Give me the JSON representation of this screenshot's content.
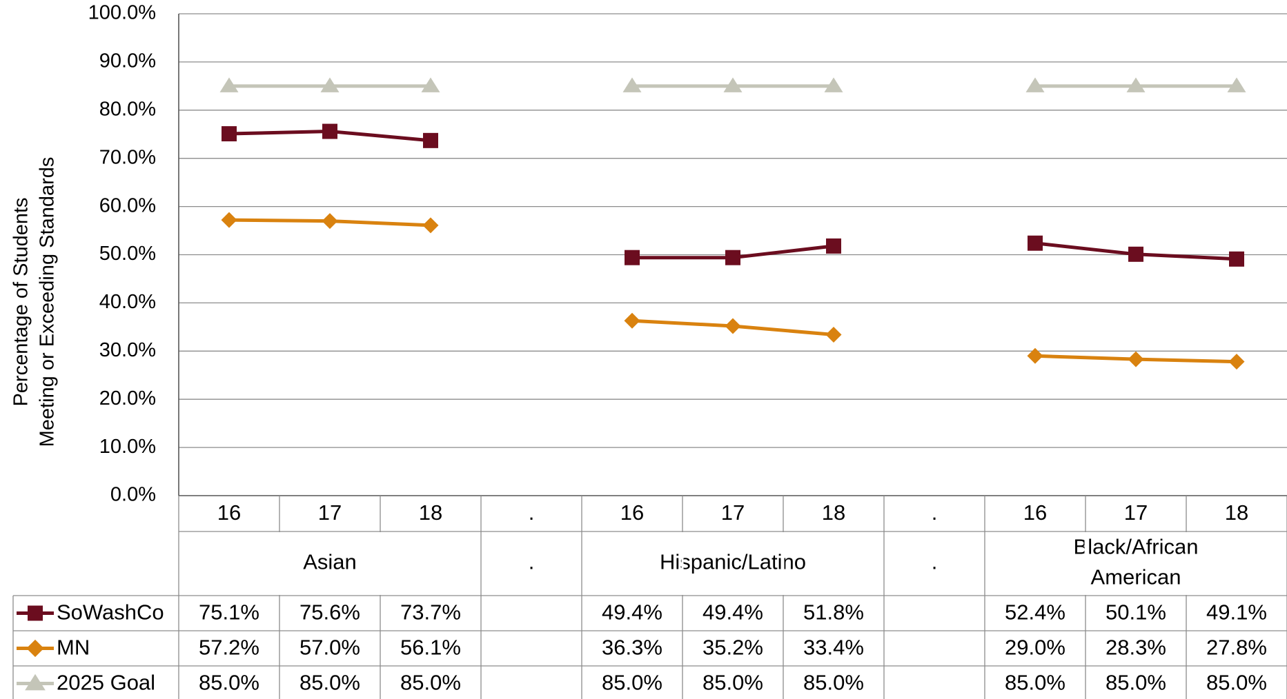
{
  "chart_data": {
    "type": "line",
    "ylabel": [
      "Percentage of Students",
      "Meeting or Exceeding Standards"
    ],
    "ylim": [
      0,
      100
    ],
    "ytick_step": 10,
    "ytick_labels": [
      "0.0%",
      "10.0%",
      "20.0%",
      "30.0%",
      "40.0%",
      "50.0%",
      "60.0%",
      "70.0%",
      "80.0%",
      "90.0%",
      "100.0%"
    ],
    "grid": true,
    "legend": "data-table",
    "categories": [
      "16",
      "17",
      "18",
      ".",
      "16",
      "17",
      "18",
      ".",
      "16",
      "17",
      "18"
    ],
    "groups": [
      {
        "label": [
          "Asian"
        ],
        "span": [
          0,
          2
        ]
      },
      {
        "label": [
          "."
        ],
        "span": [
          3,
          3
        ]
      },
      {
        "label": [
          "Hispanic/Latino"
        ],
        "span": [
          4,
          6
        ]
      },
      {
        "label": [
          "."
        ],
        "span": [
          7,
          7
        ]
      },
      {
        "label": [
          "Black/African",
          "American"
        ],
        "span": [
          8,
          10
        ]
      }
    ],
    "series": [
      {
        "name": "SoWashCo",
        "color": "#6b0d1f",
        "marker": "square",
        "values": [
          75.1,
          75.6,
          73.7,
          null,
          49.4,
          49.4,
          51.8,
          null,
          52.4,
          50.1,
          49.1
        ],
        "labels": [
          "75.1%",
          "75.6%",
          "73.7%",
          "",
          "49.4%",
          "49.4%",
          "51.8%",
          "",
          "52.4%",
          "50.1%",
          "49.1%"
        ]
      },
      {
        "name": "MN",
        "color": "#d9820f",
        "marker": "diamond",
        "values": [
          57.2,
          57.0,
          56.1,
          null,
          36.3,
          35.2,
          33.4,
          null,
          29.0,
          28.3,
          27.8
        ],
        "labels": [
          "57.2%",
          "57.0%",
          "56.1%",
          "",
          "36.3%",
          "35.2%",
          "33.4%",
          "",
          "29.0%",
          "28.3%",
          "27.8%"
        ]
      },
      {
        "name": "2025 Goal",
        "color": "#c4c5b8",
        "marker": "triangle",
        "values": [
          85.0,
          85.0,
          85.0,
          null,
          85.0,
          85.0,
          85.0,
          null,
          85.0,
          85.0,
          85.0
        ],
        "labels": [
          "85.0%",
          "85.0%",
          "85.0%",
          "",
          "85.0%",
          "85.0%",
          "85.0%",
          "",
          "85.0%",
          "85.0%",
          "85.0%"
        ]
      }
    ]
  }
}
